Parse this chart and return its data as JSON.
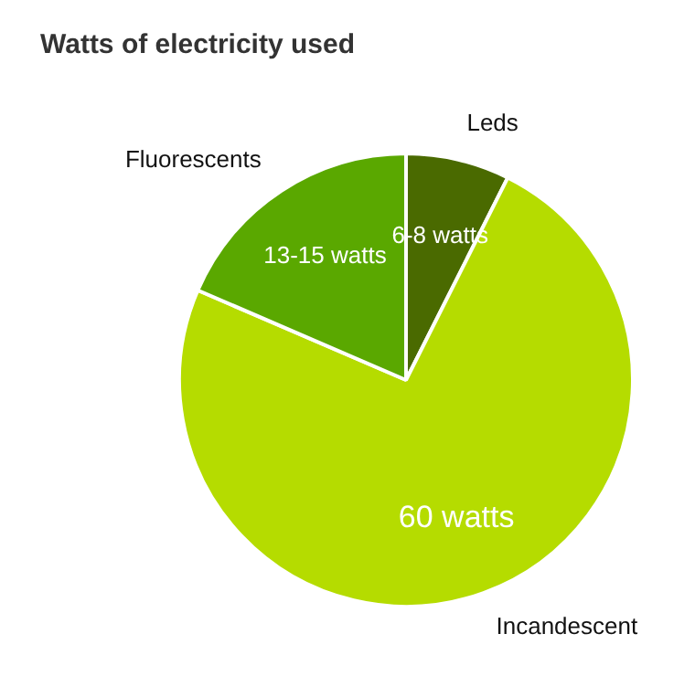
{
  "chart_data": {
    "type": "pie",
    "title": "Watts of electricity used",
    "categories": [
      "Leds",
      "Incandescent",
      "Fluorescents"
    ],
    "values": [
      6,
      60,
      15
    ],
    "colors": [
      "#4a6a00",
      "#b5dc00",
      "#5aa800"
    ],
    "value_labels": [
      "6-8 watts",
      "60 watts",
      "13-15 watts"
    ],
    "legend": false
  }
}
